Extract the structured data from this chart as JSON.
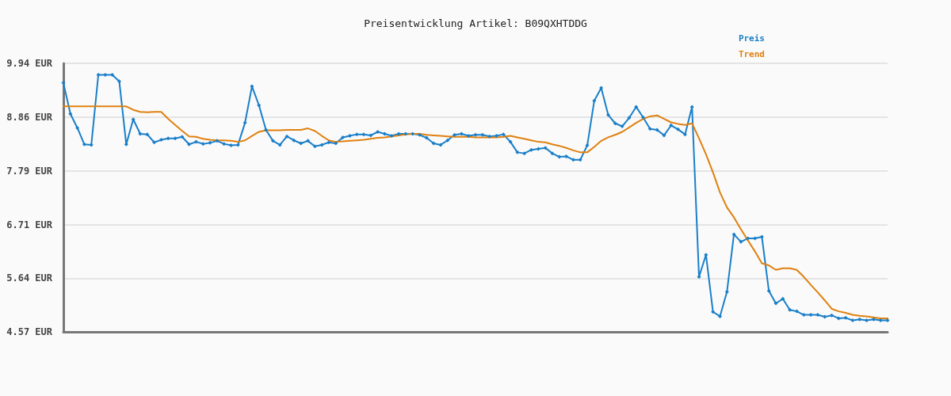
{
  "chart_data": {
    "type": "line",
    "title": "Preisentwicklung Artikel: B09QXHTDDG",
    "categories": [
      null,
      null,
      null,
      null,
      null,
      null,
      null,
      null,
      null,
      null,
      null,
      null,
      null,
      null,
      null,
      null,
      null,
      null,
      null,
      null,
      null,
      null,
      null,
      null,
      null,
      null,
      null,
      null,
      null,
      null,
      null,
      null,
      null,
      null,
      null,
      null,
      null,
      null,
      null,
      null,
      null,
      null,
      null,
      null,
      null,
      null,
      null,
      null,
      null,
      null,
      null,
      null,
      null,
      null,
      null,
      null,
      null,
      null,
      null,
      null,
      null,
      null,
      null,
      null,
      null,
      null,
      null,
      null,
      null,
      null,
      null,
      null,
      null,
      null,
      null,
      null,
      null,
      null,
      null,
      null,
      null,
      null,
      null,
      null,
      null,
      null,
      null,
      null,
      null,
      null,
      null,
      null,
      null,
      null,
      null,
      null,
      null,
      null,
      null,
      null,
      null,
      null,
      null,
      null,
      null,
      null,
      null,
      null,
      null,
      null,
      null,
      null,
      null,
      null,
      null,
      null,
      null,
      null,
      null
    ],
    "series": [
      {
        "name": "Preis",
        "color": "#1a7fc9",
        "marker": "diamond",
        "values": [
          9.55,
          8.93,
          8.65,
          8.32,
          8.31,
          9.71,
          9.71,
          9.71,
          9.58,
          8.32,
          8.82,
          8.53,
          8.52,
          8.36,
          8.41,
          8.44,
          8.44,
          8.47,
          8.32,
          8.37,
          8.33,
          8.35,
          8.39,
          8.33,
          8.3,
          8.31,
          8.75,
          9.48,
          9.1,
          8.61,
          8.39,
          8.31,
          8.48,
          8.4,
          8.34,
          8.39,
          8.28,
          8.31,
          8.36,
          8.34,
          8.46,
          8.49,
          8.52,
          8.52,
          8.5,
          8.57,
          8.53,
          8.49,
          8.53,
          8.53,
          8.53,
          8.51,
          8.45,
          8.34,
          8.31,
          8.4,
          8.51,
          8.53,
          8.49,
          8.51,
          8.51,
          8.48,
          8.49,
          8.52,
          8.37,
          8.16,
          8.14,
          8.21,
          8.23,
          8.25,
          8.14,
          8.07,
          8.08,
          8.01,
          8.01,
          8.3,
          9.19,
          9.45,
          8.91,
          8.74,
          8.68,
          8.85,
          9.07,
          8.86,
          8.63,
          8.61,
          8.5,
          8.7,
          8.62,
          8.52,
          9.07,
          5.67,
          6.11,
          4.97,
          4.88,
          5.37,
          6.52,
          6.37,
          6.44,
          6.44,
          6.47,
          5.39,
          5.14,
          5.23,
          5.01,
          4.98,
          4.91,
          4.91,
          4.91,
          4.87,
          4.9,
          4.84,
          4.85,
          4.8,
          4.82,
          4.8,
          4.82,
          4.8,
          4.8
        ]
      },
      {
        "name": "Trend",
        "color": "#e0800f",
        "marker": "none",
        "values": [
          9.08,
          9.08,
          9.08,
          9.08,
          9.08,
          9.08,
          9.08,
          9.08,
          9.08,
          9.08,
          9.01,
          8.97,
          8.96,
          8.97,
          8.97,
          8.83,
          8.71,
          8.59,
          8.48,
          8.47,
          8.43,
          8.41,
          8.4,
          8.4,
          8.39,
          8.37,
          8.4,
          8.49,
          8.57,
          8.6,
          8.6,
          8.6,
          8.61,
          8.61,
          8.61,
          8.64,
          8.59,
          8.49,
          8.4,
          8.37,
          8.38,
          8.39,
          8.4,
          8.41,
          8.43,
          8.45,
          8.46,
          8.48,
          8.5,
          8.52,
          8.53,
          8.53,
          8.51,
          8.5,
          8.49,
          8.48,
          8.47,
          8.47,
          8.47,
          8.46,
          8.46,
          8.46,
          8.46,
          8.47,
          8.49,
          8.46,
          8.43,
          8.4,
          8.37,
          8.36,
          8.32,
          8.29,
          8.25,
          8.2,
          8.16,
          8.16,
          8.27,
          8.39,
          8.46,
          8.51,
          8.57,
          8.66,
          8.75,
          8.83,
          8.88,
          8.9,
          8.83,
          8.76,
          8.73,
          8.71,
          8.74,
          8.44,
          8.12,
          7.76,
          7.36,
          7.06,
          6.86,
          6.62,
          6.4,
          6.18,
          5.94,
          5.9,
          5.81,
          5.84,
          5.84,
          5.81,
          5.67,
          5.51,
          5.36,
          5.2,
          5.03,
          4.98,
          4.95,
          4.91,
          4.89,
          4.88,
          4.86,
          4.84,
          4.84
        ]
      }
    ],
    "ylim": [
      4.57,
      9.94
    ],
    "yticks": [
      {
        "value": 4.57,
        "label": "4.57 EUR"
      },
      {
        "value": 5.64,
        "label": "5.64 EUR"
      },
      {
        "value": 6.71,
        "label": "6.71 EUR"
      },
      {
        "value": 7.79,
        "label": "7.79 EUR"
      },
      {
        "value": 8.86,
        "label": "8.86 EUR"
      },
      {
        "value": 9.94,
        "label": "9.94 EUR"
      }
    ],
    "grid": "y",
    "legend": "top right",
    "tick_labels": "y",
    "line_style": "solid"
  }
}
